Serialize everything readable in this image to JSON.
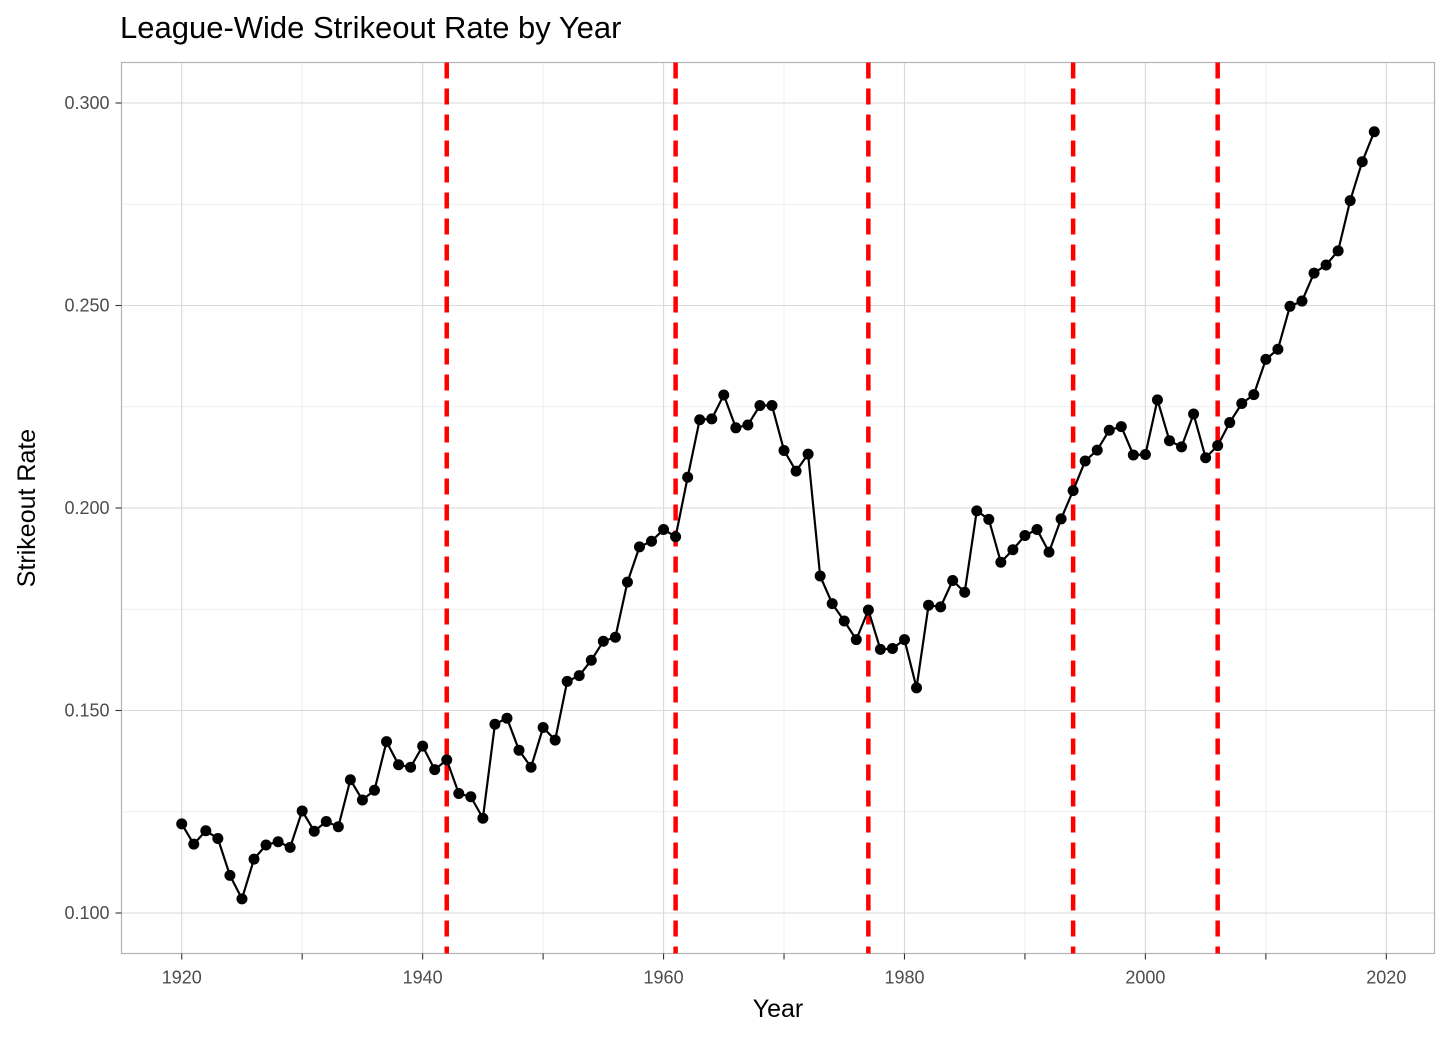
{
  "chart_data": {
    "type": "line",
    "title": "League-Wide Strikeout Rate by Year",
    "xlabel": "Year",
    "ylabel": "Strikeout Rate",
    "xlim": [
      1915,
      2024
    ],
    "ylim": [
      0.09,
      0.31
    ],
    "x_ticks": [
      1920,
      1940,
      1960,
      1980,
      2000,
      2020
    ],
    "x_tick_labels": [
      "1920",
      "1940",
      "1960",
      "1980",
      "2000",
      "2020"
    ],
    "y_ticks": [
      0.1,
      0.15,
      0.2,
      0.25,
      0.3
    ],
    "y_tick_labels": [
      "0.100",
      "0.150",
      "0.200",
      "0.250",
      "0.300"
    ],
    "grid": true,
    "legend": "none",
    "series": [
      {
        "color": "#000000",
        "markers": true,
        "x": [
          1920,
          1921,
          1922,
          1923,
          1924,
          1925,
          1926,
          1927,
          1928,
          1929,
          1930,
          1931,
          1932,
          1933,
          1934,
          1935,
          1936,
          1937,
          1938,
          1939,
          1940,
          1941,
          1942,
          1943,
          1944,
          1945,
          1946,
          1947,
          1948,
          1949,
          1950,
          1951,
          1952,
          1953,
          1954,
          1955,
          1956,
          1957,
          1958,
          1959,
          1960,
          1961,
          1962,
          1963,
          1964,
          1965,
          1966,
          1967,
          1968,
          1969,
          1970,
          1971,
          1972,
          1973,
          1974,
          1975,
          1976,
          1977,
          1978,
          1979,
          1980,
          1981,
          1982,
          1983,
          1984,
          1985,
          1986,
          1987,
          1988,
          1989,
          1990,
          1991,
          1992,
          1993,
          1994,
          1995,
          1996,
          1997,
          1998,
          1999,
          2000,
          2001,
          2002,
          2003,
          2004,
          2005,
          2006,
          2007,
          2008,
          2009,
          2010,
          2011,
          2012,
          2013,
          2014,
          2015,
          2016,
          2017,
          2018,
          2019
        ],
        "values": [
          0.122,
          0.117,
          0.1203,
          0.1184,
          0.1093,
          0.1035,
          0.1133,
          0.1168,
          0.1176,
          0.1162,
          0.1252,
          0.1202,
          0.1226,
          0.1213,
          0.1329,
          0.1279,
          0.1303,
          0.1423,
          0.1366,
          0.136,
          0.1412,
          0.1354,
          0.1378,
          0.1295,
          0.1287,
          0.1234,
          0.1466,
          0.1481,
          0.1402,
          0.136,
          0.1458,
          0.1427,
          0.1572,
          0.1586,
          0.1624,
          0.1671,
          0.1681,
          0.1817,
          0.1904,
          0.1918,
          0.1947,
          0.1929,
          0.2076,
          0.2218,
          0.222,
          0.2279,
          0.2198,
          0.2205,
          0.2253,
          0.2253,
          0.2142,
          0.2091,
          0.2133,
          0.1832,
          0.1764,
          0.1721,
          0.1675,
          0.1748,
          0.1651,
          0.1653,
          0.1675,
          0.1556,
          0.176,
          0.1756,
          0.1821,
          0.1792,
          0.1993,
          0.1972,
          0.1866,
          0.1897,
          0.1932,
          0.1947,
          0.1891,
          0.1973,
          0.2043,
          0.2116,
          0.2143,
          0.2192,
          0.2201,
          0.2131,
          0.2132,
          0.2267,
          0.2166,
          0.2151,
          0.2232,
          0.2124,
          0.2154,
          0.2211,
          0.2258,
          0.228,
          0.2367,
          0.2392,
          0.2498,
          0.2511,
          0.258,
          0.26,
          0.2635,
          0.2759,
          0.2855,
          0.2929
        ]
      }
    ],
    "reference_lines": {
      "orientation": "vertical",
      "style": "dashed",
      "color": "#ff0000",
      "x": [
        1942,
        1961,
        1977,
        1994,
        2006
      ]
    }
  }
}
